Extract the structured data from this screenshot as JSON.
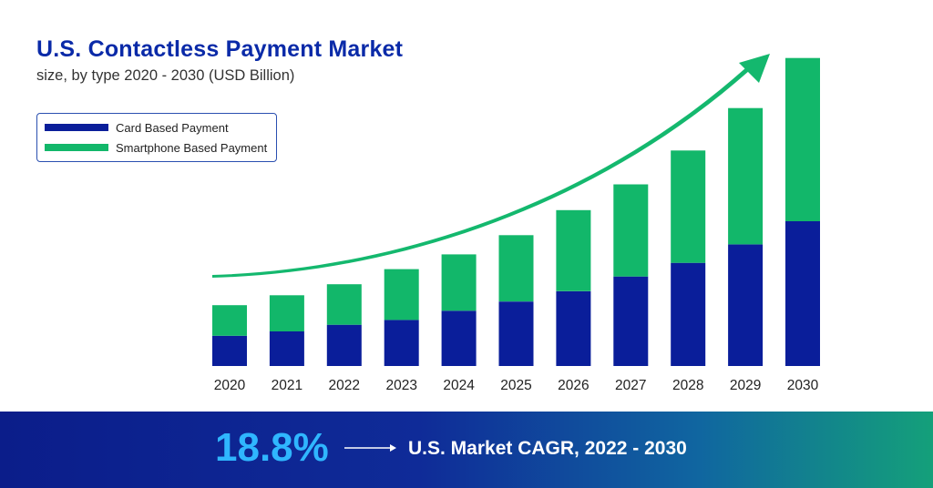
{
  "colors": {
    "card": "#0a1e9a",
    "smartphone": "#12b76a",
    "trend_arrow": "#14b86e",
    "cagr_value": "#2fb6ff"
  },
  "chart_data": {
    "type": "bar",
    "stacked": true,
    "title": "U.S. Contactless Payment Market",
    "subtitle": "size, by type 2020 - 2030 (USD Billion)",
    "categories": [
      "2020",
      "2021",
      "2022",
      "2023",
      "2024",
      "2025",
      "2026",
      "2027",
      "2028",
      "2029",
      "2030"
    ],
    "series": [
      {
        "name": "Card Based Payment",
        "values": [
          8.2,
          9.4,
          11.2,
          12.5,
          15.0,
          17.5,
          20.3,
          24.3,
          28.0,
          33.0,
          39.3
        ]
      },
      {
        "name": "Smartphone Based Payment",
        "values": [
          8.3,
          9.8,
          11.0,
          13.8,
          15.3,
          18.0,
          22.0,
          25.0,
          30.5,
          37.0,
          44.3
        ]
      }
    ],
    "ylim": [
      0,
      86
    ],
    "legend_position": "top-left",
    "grid": false,
    "trend_arrow": true
  },
  "banner": {
    "cagr_value": "18.8%",
    "cagr_label": "U.S. Market CAGR, 2022 - 2030"
  }
}
